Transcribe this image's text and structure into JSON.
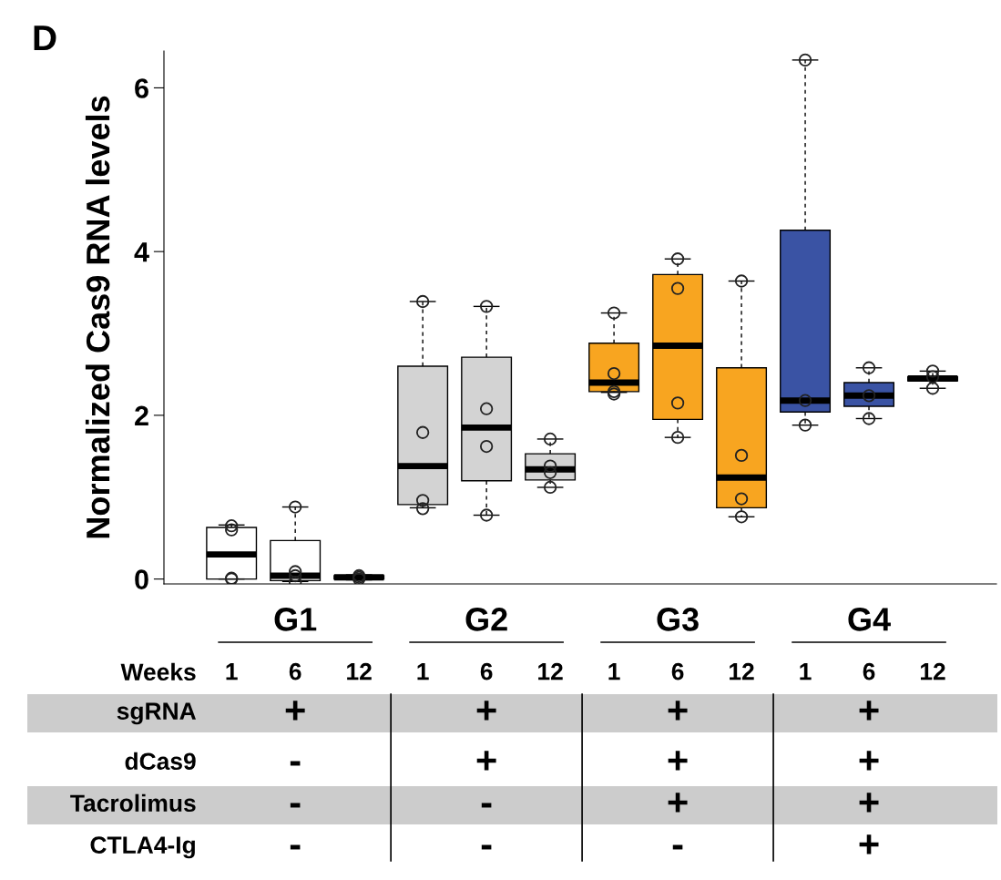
{
  "chart_data": {
    "type": "box",
    "title": "D",
    "ylabel": "Normalized Cas9 RNA levels",
    "categories": [
      "1",
      "6",
      "12",
      "1",
      "6",
      "12",
      "1",
      "6",
      "12",
      "1",
      "6",
      "12"
    ],
    "colors": [
      "#ffffff",
      "#ffffff",
      "#ffffff",
      "#d3d3d3",
      "#d3d3d3",
      "#d3d3d3",
      "#f8a520",
      "#f8a520",
      "#f8a520",
      "#3a53a4",
      "#3a53a4",
      "#3a53a4"
    ],
    "boxes": [
      {
        "low": 0,
        "q1": 0,
        "median": 0.3,
        "q3": 0.63,
        "high": 0.66,
        "outliers": [
          0.65,
          0.6,
          0.01,
          0
        ]
      },
      {
        "low": -0.03,
        "q1": -0.02,
        "median": 0.04,
        "q3": 0.47,
        "high": 0.88,
        "outliers": [
          0.88,
          0.09,
          0.04,
          -0.04
        ]
      },
      {
        "low": -0.01,
        "q1": 0.0,
        "median": 0.02,
        "q3": 0.04,
        "high": 0.05,
        "outliers": [
          0.04,
          0.02,
          0.0
        ]
      },
      {
        "low": 0.87,
        "q1": 0.91,
        "median": 1.38,
        "q3": 2.6,
        "high": 3.39,
        "outliers": [
          3.39,
          1.79,
          0.96,
          0.86
        ]
      },
      {
        "low": 0.78,
        "q1": 1.2,
        "median": 1.85,
        "q3": 2.71,
        "high": 3.33,
        "outliers": [
          3.33,
          2.08,
          1.62,
          0.78
        ]
      },
      {
        "low": 1.12,
        "q1": 1.21,
        "median": 1.34,
        "q3": 1.53,
        "high": 1.71,
        "outliers": [
          1.71,
          1.38,
          1.3,
          1.12
        ]
      },
      {
        "low": 2.28,
        "q1": 2.29,
        "median": 2.4,
        "q3": 2.88,
        "high": 3.25,
        "outliers": [
          3.25,
          2.51,
          2.29,
          2.26
        ]
      },
      {
        "low": 1.73,
        "q1": 1.95,
        "median": 2.85,
        "q3": 3.72,
        "high": 3.91,
        "outliers": [
          3.91,
          3.55,
          2.15,
          1.73
        ]
      },
      {
        "low": 0.76,
        "q1": 0.87,
        "median": 1.24,
        "q3": 2.58,
        "high": 3.64,
        "outliers": [
          3.64,
          1.51,
          0.98,
          0.76
        ]
      },
      {
        "low": 1.88,
        "q1": 2.04,
        "median": 2.18,
        "q3": 4.26,
        "high": 6.34,
        "outliers": [
          6.34,
          2.18,
          1.88
        ]
      },
      {
        "low": 1.96,
        "q1": 2.11,
        "median": 2.24,
        "q3": 2.4,
        "high": 2.58,
        "outliers": [
          2.58,
          2.24,
          1.96
        ]
      },
      {
        "low": 2.33,
        "q1": 2.42,
        "median": 2.45,
        "q3": 2.47,
        "high": 2.54,
        "outliers": [
          2.54,
          2.47,
          2.33
        ]
      }
    ],
    "ylim": [
      -0.06,
      6.45
    ],
    "yticks": [
      0,
      2,
      4,
      6
    ],
    "annotations": [
      "G1",
      "G2",
      "G3",
      "G4",
      "Weeks",
      "sgRNA",
      "+",
      "+",
      "+",
      "+",
      "dCas9",
      "-",
      "+",
      "+",
      "+",
      "Tacrolimus",
      "-",
      "-",
      "+",
      "+",
      "CTLA4-Ig",
      "-",
      "-",
      "-",
      "+"
    ]
  }
}
